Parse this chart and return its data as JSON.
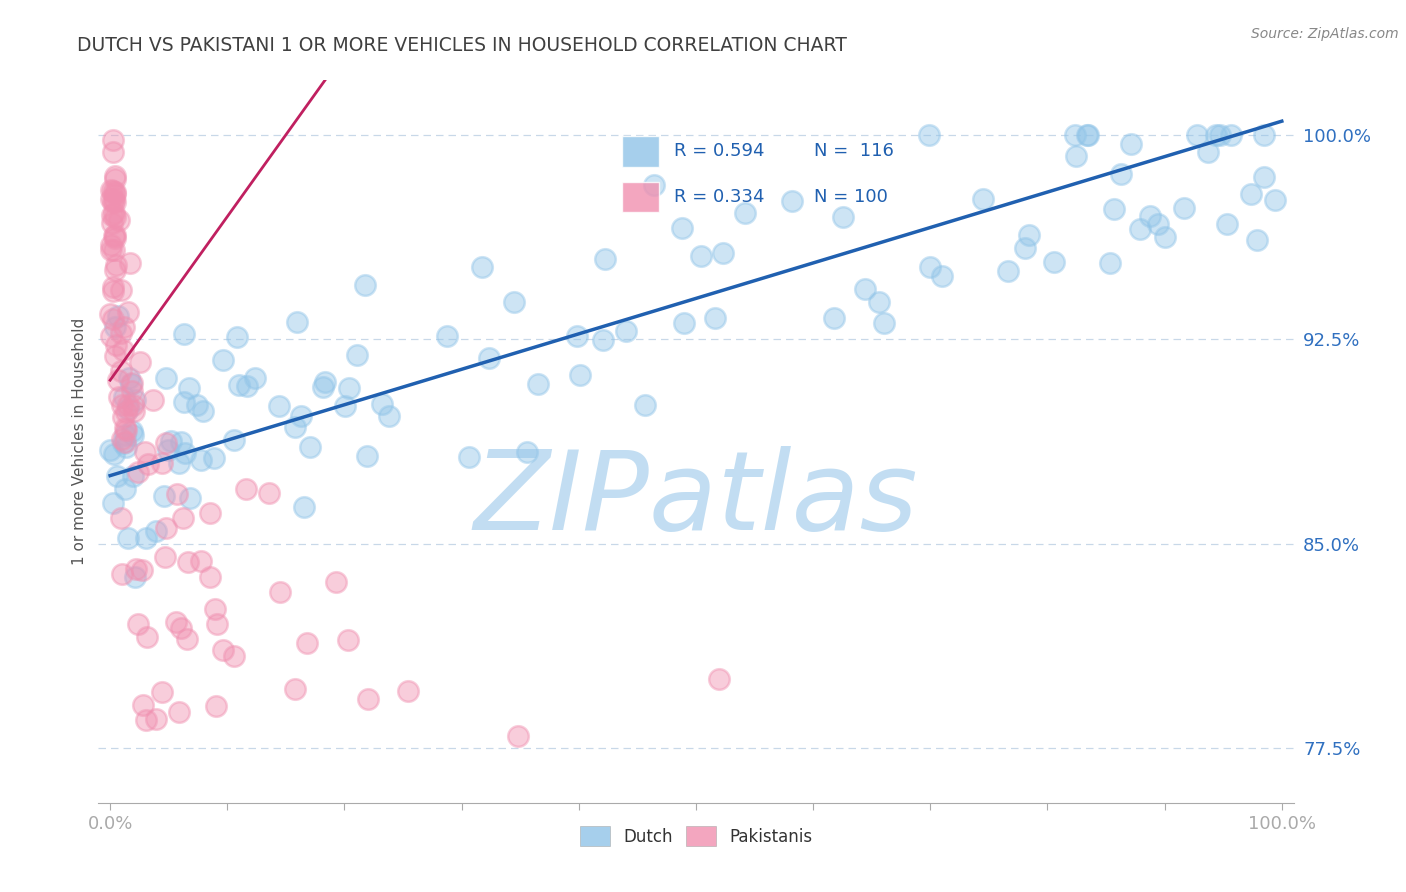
{
  "title": "DUTCH VS PAKISTANI 1 OR MORE VEHICLES IN HOUSEHOLD CORRELATION CHART",
  "source_text": "Source: ZipAtlas.com",
  "ylabel": "1 or more Vehicles in Household",
  "dutch_R": 0.594,
  "dutch_N": 116,
  "pakistani_R": 0.334,
  "pakistani_N": 100,
  "dutch_color": "#90c4e8",
  "pakistani_color": "#f090b0",
  "dutch_line_color": "#2060b0",
  "pakistani_line_color": "#c02060",
  "watermark": "ZIPatlas",
  "watermark_color": "#b8d8f0",
  "background_color": "#ffffff",
  "grid_color": "#c8d8e8",
  "title_color": "#404040",
  "axis_label_color": "#3070c0",
  "legend_color": "#2060b0",
  "ytick_positions": [
    0.775,
    0.85,
    0.925,
    1.0
  ],
  "ytick_labels": [
    "77.5%",
    "85.0%",
    "92.5%",
    "100.0%"
  ]
}
